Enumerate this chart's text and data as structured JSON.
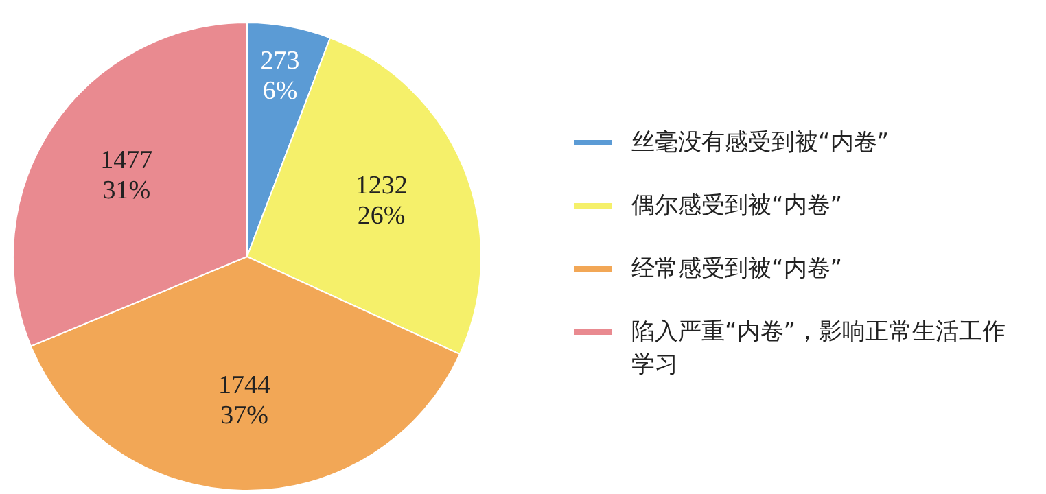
{
  "chart_data": {
    "type": "pie",
    "categories": [
      "丝毫没有感受到被“内卷”",
      "偶尔感受到被“内卷”",
      "经常感受到被“内卷”",
      "陷入严重“内卷”，影响正常生活工作学习"
    ],
    "values": [
      273,
      1232,
      1744,
      1477
    ],
    "value_labels": [
      "273 6%",
      "1232 26%",
      "1744 37%",
      "1477 31%"
    ],
    "colors": [
      "#5b9bd5",
      "#f5f06a",
      "#f2a756",
      "#e98a90"
    ],
    "legend": "right"
  }
}
